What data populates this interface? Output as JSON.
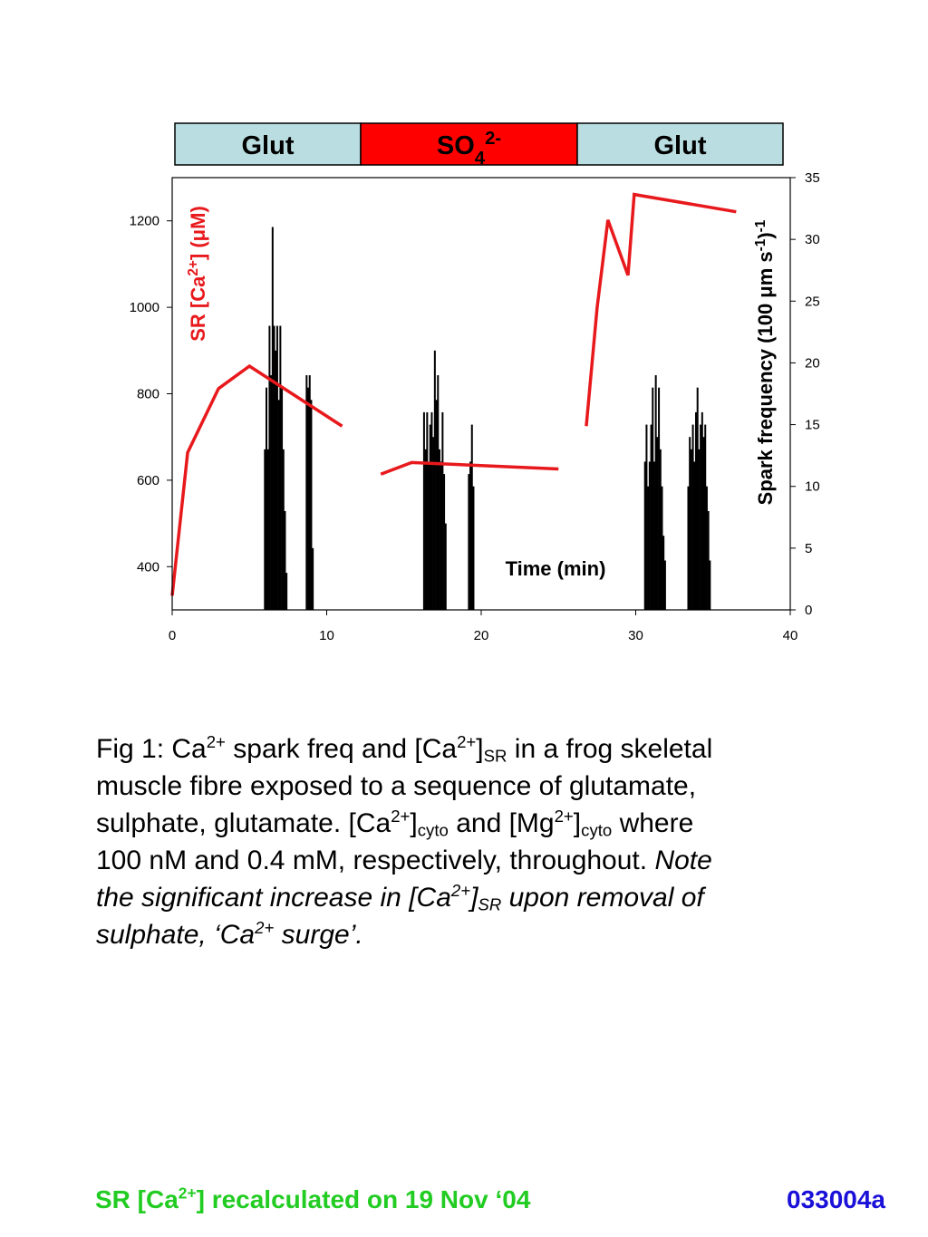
{
  "chart_data": {
    "type": "combo",
    "treatments": [
      {
        "label": [
          {
            "text": "Glut"
          }
        ],
        "color": "#b9dde0"
      },
      {
        "label": [
          {
            "text": "SO"
          },
          {
            "text": "4",
            "shift": "sub"
          },
          {
            "text": "2-",
            "shift": "sup"
          }
        ],
        "color": "#ff0000"
      },
      {
        "label": [
          {
            "text": "Glut"
          }
        ],
        "color": "#b9dde0"
      }
    ],
    "xlabel": [
      {
        "text": "Time (min)"
      }
    ],
    "ylabel": [
      {
        "text": "SR [Ca"
      },
      {
        "text": "2+",
        "shift": "sup"
      },
      {
        "text": "] (μM)"
      }
    ],
    "y2label": [
      {
        "text": "Spark frequency (100 μm s"
      },
      {
        "text": "-1",
        "shift": "sup"
      },
      {
        "text": ")"
      },
      {
        "text": "-1",
        "shift": "sup"
      }
    ],
    "xlim": [
      0,
      40
    ],
    "xticks": [
      0,
      10,
      20,
      30,
      40
    ],
    "ylim": [
      300,
      1300
    ],
    "yticks": [
      400,
      600,
      800,
      1000,
      1200
    ],
    "y2lim": [
      0,
      35
    ],
    "y2ticks": [
      0,
      5,
      10,
      15,
      20,
      25,
      30,
      35
    ],
    "series": [
      {
        "type": "bar",
        "axis": "y2",
        "color": "#000000",
        "x": [
          6.0,
          6.1,
          6.2,
          6.3,
          6.4,
          6.5,
          6.6,
          6.7,
          6.8,
          6.9,
          7.0,
          7.1,
          7.2,
          7.3,
          7.4,
          8.7,
          8.8,
          8.9,
          9.0,
          9.1,
          16.3,
          16.4,
          16.5,
          16.6,
          16.7,
          16.8,
          16.9,
          17.0,
          17.1,
          17.2,
          17.3,
          17.4,
          17.5,
          17.6,
          17.7,
          19.2,
          19.3,
          19.4,
          19.5,
          30.6,
          30.7,
          30.8,
          30.9,
          31.0,
          31.1,
          31.2,
          31.3,
          31.4,
          31.5,
          31.6,
          31.7,
          31.8,
          31.9,
          33.4,
          33.5,
          33.6,
          33.7,
          33.8,
          33.9,
          34.0,
          34.1,
          34.2,
          34.3,
          34.4,
          34.5,
          34.6,
          34.7,
          34.8
        ],
        "values": [
          13,
          18,
          13,
          23,
          19,
          31,
          23,
          21,
          23,
          17,
          23,
          18,
          13,
          8,
          3,
          19,
          18,
          19,
          17,
          5,
          16,
          13,
          16,
          12,
          15,
          16,
          14,
          21,
          17,
          19,
          13,
          12,
          16,
          11,
          7,
          11,
          12,
          15,
          10,
          12,
          15,
          10,
          12,
          15,
          18,
          12,
          19,
          14,
          18,
          13,
          10,
          6,
          4,
          10,
          14,
          13,
          15,
          12,
          16,
          18,
          13,
          15,
          16,
          14,
          15,
          10,
          8,
          4
        ]
      },
      {
        "type": "line",
        "color": "#e8191c",
        "x": [
          0,
          1,
          3,
          5,
          11,
          null,
          13.5,
          15.5,
          25,
          null,
          26.8,
          27.5,
          28.2,
          29.5,
          29.9,
          36.5
        ],
        "values": [
          333,
          664,
          812,
          864,
          725,
          null,
          614,
          641,
          626,
          null,
          725,
          999,
          1202,
          1074,
          1261,
          1221
        ]
      }
    ]
  },
  "caption": [
    [
      {
        "text": "Fig 1: Ca"
      },
      {
        "text": "2+",
        "shift": "sup"
      },
      {
        "text": " spark freq and [Ca"
      },
      {
        "text": "2+",
        "shift": "sup"
      },
      {
        "text": "]"
      },
      {
        "text": "SR",
        "shift": "sub"
      },
      {
        "text": " in a frog skeletal"
      }
    ],
    [
      {
        "text": "muscle fibre exposed to a sequence of glutamate,"
      }
    ],
    [
      {
        "text": "sulphate, glutamate. [Ca"
      },
      {
        "text": "2+",
        "shift": "sup"
      },
      {
        "text": "]"
      },
      {
        "text": "cyto",
        "shift": "sub"
      },
      {
        "text": " and [Mg"
      },
      {
        "text": "2+",
        "shift": "sup"
      },
      {
        "text": "]"
      },
      {
        "text": "cyto",
        "shift": "sub"
      },
      {
        "text": " where"
      }
    ],
    [
      {
        "text": "100 nM and 0.4 mM, respectively, throughout. "
      },
      {
        "text": "Note",
        "italic": true
      }
    ],
    [
      {
        "text": "the significant increase in [Ca",
        "italic": true
      },
      {
        "text": "2+",
        "shift": "sup",
        "italic": true
      },
      {
        "text": "]",
        "italic": true
      },
      {
        "text": "SR",
        "shift": "sub",
        "italic": true
      },
      {
        "text": " upon removal of",
        "italic": true
      }
    ],
    [
      {
        "text": "sulphate, ‘Ca",
        "italic": true
      },
      {
        "text": "2+",
        "shift": "sup",
        "italic": true
      },
      {
        "text": " surge’.",
        "italic": true
      }
    ]
  ],
  "footer": {
    "note": {
      "runs": [
        {
          "text": "SR [Ca"
        },
        {
          "text": "2+",
          "shift": "sup"
        },
        {
          "text": "] recalculated on 19 Nov ‘04"
        }
      ],
      "color": "#22cc22"
    },
    "code": {
      "runs": [
        {
          "text": "033004a"
        }
      ],
      "color": "#1a10d8"
    }
  }
}
